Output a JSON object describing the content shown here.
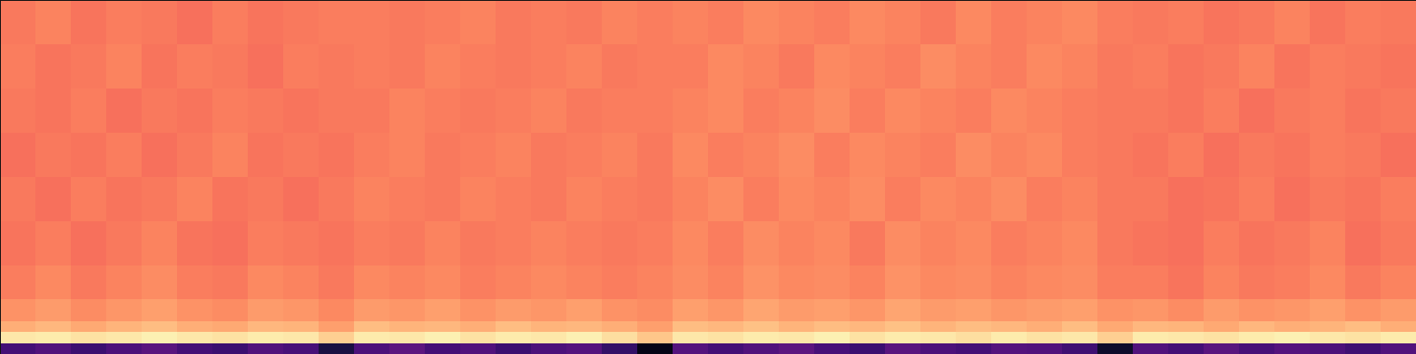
{
  "chart_data": {
    "type": "heatmap",
    "x_edges": [
      0,
      1,
      2,
      3,
      4,
      5,
      6,
      7,
      8,
      9,
      10,
      11,
      12,
      13,
      14,
      15,
      16,
      17,
      18,
      19,
      20,
      21,
      22,
      23,
      24,
      25,
      26,
      27,
      28,
      29,
      30,
      31,
      32,
      33,
      34,
      35,
      36,
      37,
      38,
      39,
      40
    ],
    "y_edges": [
      0,
      1,
      2,
      3,
      5,
      8,
      12,
      16,
      20,
      24,
      28,
      32
    ],
    "values": [
      [
        0.22,
        0.25,
        0.2,
        0.24,
        0.27,
        0.22,
        0.2,
        0.25,
        0.23,
        0.12,
        0.24,
        0.28,
        0.22,
        0.25,
        0.2,
        0.24,
        0.26,
        0.18,
        0.04,
        0.26,
        0.22,
        0.25,
        0.28,
        0.23,
        0.2,
        0.27,
        0.24,
        0.22,
        0.26,
        0.25,
        0.21,
        0.08,
        0.25,
        0.22,
        0.27,
        0.23,
        0.26,
        0.24,
        0.21,
        0.25
      ],
      [
        0.95,
        0.96,
        0.94,
        0.95,
        0.97,
        0.95,
        0.94,
        0.96,
        0.95,
        0.9,
        0.96,
        0.95,
        0.97,
        0.94,
        0.96,
        0.95,
        0.97,
        0.93,
        0.88,
        0.95,
        0.94,
        0.96,
        0.95,
        0.97,
        0.94,
        0.96,
        0.95,
        0.93,
        0.96,
        0.94,
        0.95,
        0.9,
        0.96,
        0.95,
        0.94,
        0.96,
        0.97,
        0.95,
        0.94,
        0.96
      ],
      [
        0.83,
        0.85,
        0.82,
        0.84,
        0.86,
        0.83,
        0.82,
        0.85,
        0.84,
        0.8,
        0.86,
        0.84,
        0.85,
        0.83,
        0.86,
        0.84,
        0.85,
        0.83,
        0.8,
        0.86,
        0.85,
        0.87,
        0.84,
        0.86,
        0.85,
        0.87,
        0.84,
        0.86,
        0.85,
        0.83,
        0.86,
        0.82,
        0.85,
        0.84,
        0.82,
        0.85,
        0.83,
        0.84,
        0.86,
        0.83
      ],
      [
        0.77,
        0.79,
        0.76,
        0.78,
        0.8,
        0.77,
        0.76,
        0.79,
        0.78,
        0.75,
        0.79,
        0.78,
        0.8,
        0.77,
        0.79,
        0.78,
        0.8,
        0.77,
        0.76,
        0.8,
        0.78,
        0.81,
        0.79,
        0.8,
        0.78,
        0.81,
        0.79,
        0.8,
        0.78,
        0.79,
        0.8,
        0.77,
        0.78,
        0.76,
        0.79,
        0.77,
        0.78,
        0.8,
        0.77,
        0.79
      ],
      [
        0.73,
        0.75,
        0.72,
        0.74,
        0.76,
        0.73,
        0.72,
        0.75,
        0.74,
        0.72,
        0.75,
        0.74,
        0.75,
        0.73,
        0.74,
        0.75,
        0.74,
        0.73,
        0.74,
        0.76,
        0.74,
        0.77,
        0.75,
        0.76,
        0.74,
        0.77,
        0.75,
        0.76,
        0.74,
        0.75,
        0.76,
        0.73,
        0.73,
        0.71,
        0.74,
        0.72,
        0.73,
        0.75,
        0.72,
        0.74
      ],
      [
        0.71,
        0.73,
        0.7,
        0.72,
        0.74,
        0.71,
        0.7,
        0.73,
        0.72,
        0.71,
        0.73,
        0.72,
        0.74,
        0.72,
        0.73,
        0.74,
        0.73,
        0.72,
        0.73,
        0.75,
        0.73,
        0.76,
        0.74,
        0.75,
        0.72,
        0.76,
        0.74,
        0.75,
        0.73,
        0.74,
        0.75,
        0.72,
        0.71,
        0.7,
        0.73,
        0.71,
        0.72,
        0.74,
        0.7,
        0.72
      ],
      [
        0.72,
        0.7,
        0.73,
        0.71,
        0.72,
        0.74,
        0.71,
        0.72,
        0.7,
        0.72,
        0.74,
        0.73,
        0.72,
        0.74,
        0.73,
        0.72,
        0.74,
        0.73,
        0.72,
        0.74,
        0.76,
        0.73,
        0.75,
        0.74,
        0.76,
        0.73,
        0.75,
        0.74,
        0.76,
        0.73,
        0.74,
        0.72,
        0.72,
        0.7,
        0.71,
        0.73,
        0.7,
        0.72,
        0.71,
        0.73
      ],
      [
        0.7,
        0.72,
        0.71,
        0.73,
        0.7,
        0.72,
        0.74,
        0.71,
        0.72,
        0.71,
        0.73,
        0.74,
        0.72,
        0.73,
        0.74,
        0.72,
        0.73,
        0.74,
        0.72,
        0.75,
        0.73,
        0.74,
        0.76,
        0.73,
        0.75,
        0.74,
        0.73,
        0.76,
        0.74,
        0.75,
        0.73,
        0.72,
        0.71,
        0.73,
        0.7,
        0.72,
        0.71,
        0.73,
        0.72,
        0.7
      ],
      [
        0.72,
        0.71,
        0.73,
        0.7,
        0.72,
        0.71,
        0.73,
        0.72,
        0.71,
        0.72,
        0.72,
        0.74,
        0.73,
        0.72,
        0.73,
        0.74,
        0.72,
        0.73,
        0.73,
        0.74,
        0.75,
        0.73,
        0.74,
        0.76,
        0.73,
        0.75,
        0.74,
        0.73,
        0.75,
        0.74,
        0.73,
        0.72,
        0.72,
        0.71,
        0.73,
        0.7,
        0.72,
        0.73,
        0.71,
        0.72
      ],
      [
        0.73,
        0.71,
        0.72,
        0.74,
        0.71,
        0.73,
        0.72,
        0.7,
        0.73,
        0.72,
        0.73,
        0.72,
        0.74,
        0.73,
        0.72,
        0.73,
        0.74,
        0.72,
        0.73,
        0.73,
        0.75,
        0.74,
        0.72,
        0.75,
        0.74,
        0.73,
        0.76,
        0.74,
        0.73,
        0.75,
        0.74,
        0.72,
        0.73,
        0.71,
        0.72,
        0.74,
        0.71,
        0.73,
        0.72,
        0.71
      ],
      [
        0.72,
        0.74,
        0.71,
        0.73,
        0.72,
        0.7,
        0.73,
        0.71,
        0.72,
        0.73,
        0.73,
        0.72,
        0.73,
        0.74,
        0.72,
        0.73,
        0.72,
        0.74,
        0.73,
        0.74,
        0.73,
        0.75,
        0.74,
        0.73,
        0.75,
        0.74,
        0.72,
        0.75,
        0.73,
        0.74,
        0.75,
        0.73,
        0.72,
        0.73,
        0.71,
        0.72,
        0.74,
        0.71,
        0.73,
        0.72
      ]
    ],
    "color": "magma",
    "zlim": [
      0,
      1
    ],
    "xlim": [
      0,
      40
    ],
    "ylim": [
      0,
      32
    ],
    "tick_labels": false
  }
}
